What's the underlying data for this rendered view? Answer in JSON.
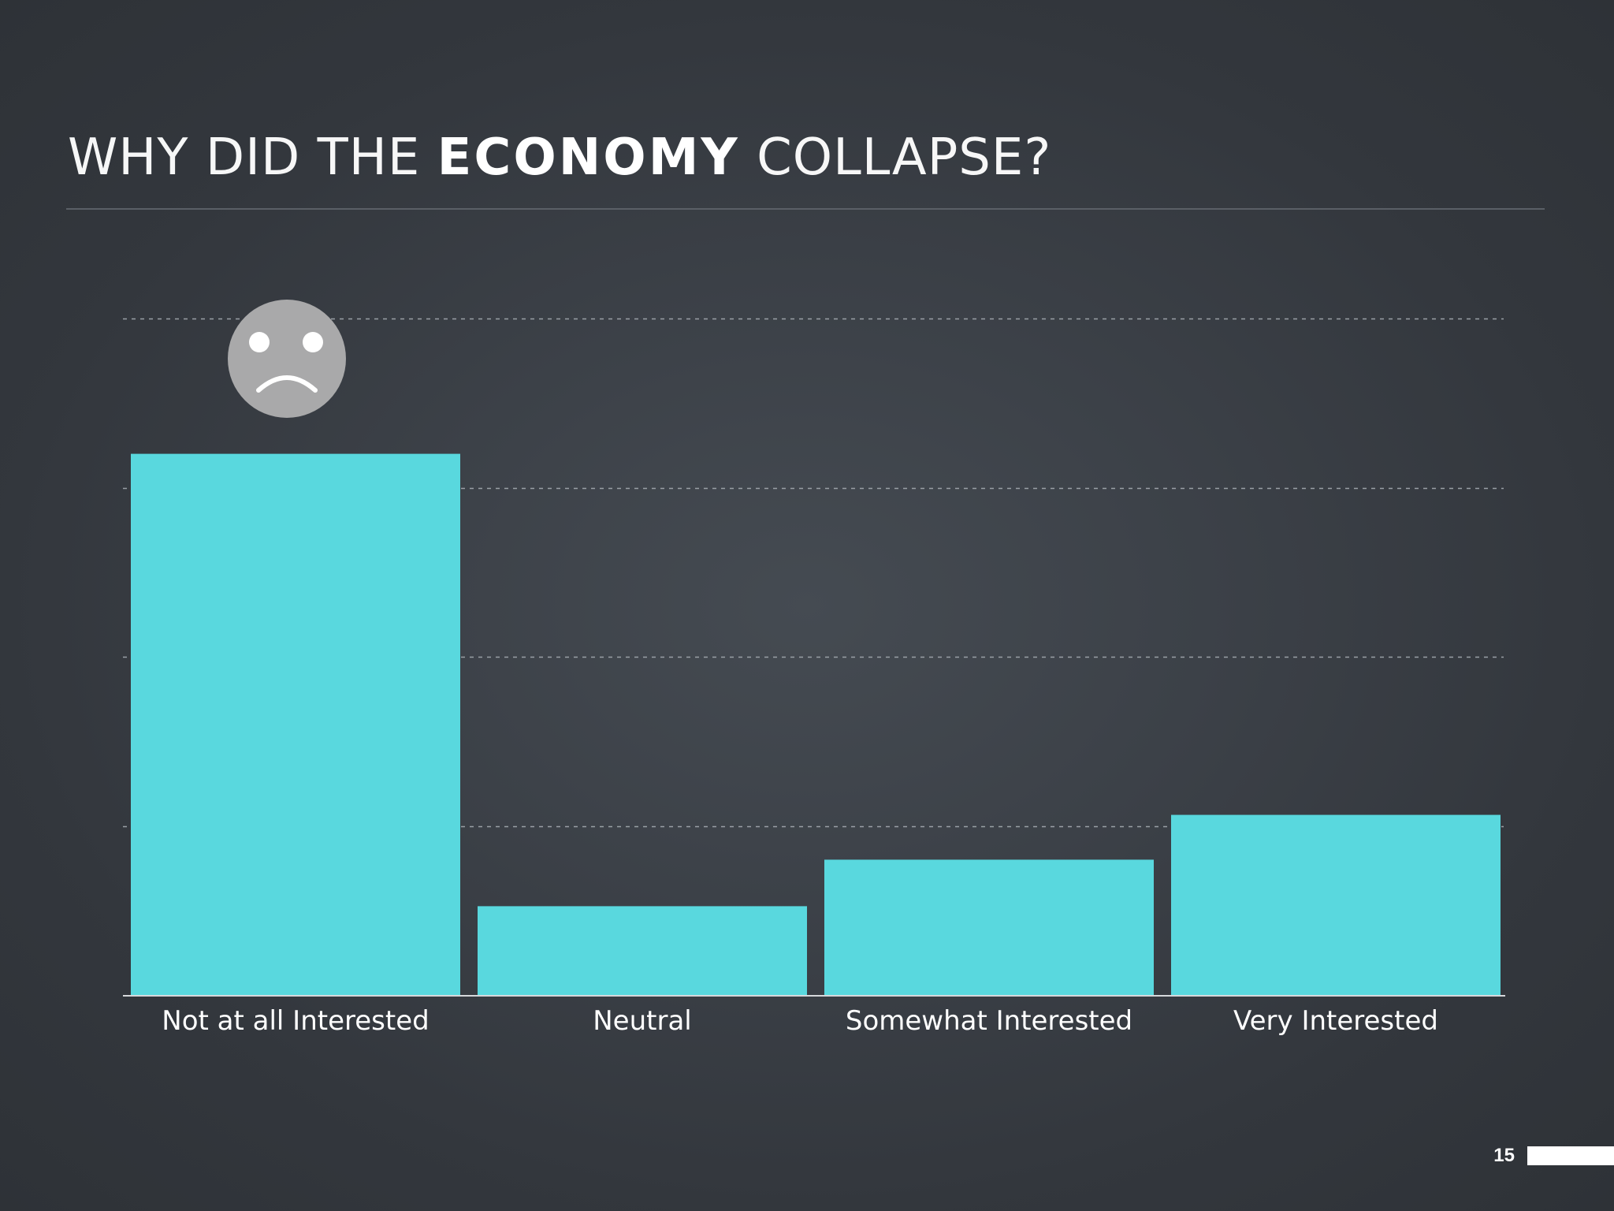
{
  "slide": {
    "title_part1": "WHY DID THE ",
    "title_part2": "ECONOMY",
    "title_part3": " COLLAPSE?",
    "page_number": "15"
  },
  "annotation": {
    "icon": "sad-face-icon",
    "category": "Not at all Interested"
  },
  "colors": {
    "bar": "#59d8de",
    "background": "#3a3f45",
    "gridline": "#9aa0a6",
    "icon": "#a9a9aa"
  },
  "chart_data": {
    "type": "bar",
    "categories": [
      "Not at all Interested",
      "Neutral",
      "Somewhat Interested",
      "Very Interested"
    ],
    "values": [
      64,
      10.5,
      16,
      21.3
    ],
    "ylim": [
      0,
      80
    ],
    "grid": true,
    "title": "",
    "xlabel": "",
    "ylabel": ""
  }
}
